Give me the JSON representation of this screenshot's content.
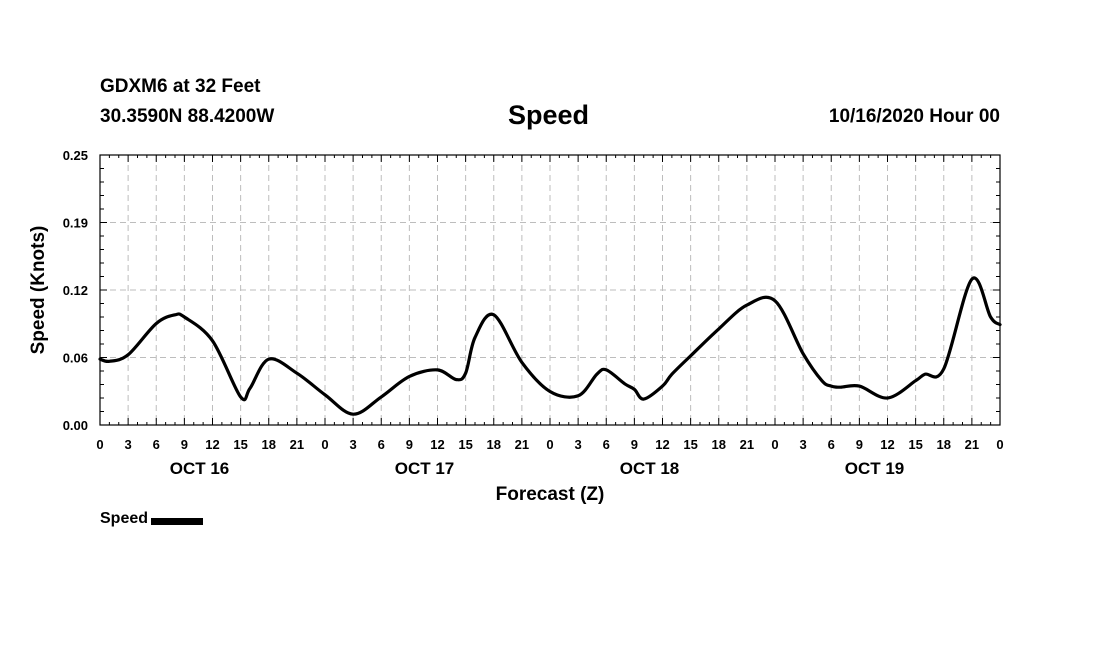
{
  "header": {
    "station": "GDXM6 at 32 Feet",
    "coords": "30.3590N 88.4200W",
    "title": "Speed",
    "datetime": "10/16/2020 Hour 00"
  },
  "chart_data": {
    "type": "line",
    "title": "Speed",
    "xlabel": "Forecast (Z)",
    "ylabel": "Speed (Knots)",
    "xlim": [
      0,
      96
    ],
    "ylim": [
      0,
      0.25
    ],
    "yticks": [
      "0.00",
      "0.06",
      "0.12",
      "0.19",
      "0.25"
    ],
    "ytick_values": [
      0,
      0.0625,
      0.125,
      0.1875,
      0.25
    ],
    "xtick_labels": [
      "0",
      "3",
      "6",
      "9",
      "12",
      "15",
      "18",
      "21",
      "0",
      "3",
      "6",
      "9",
      "12",
      "15",
      "18",
      "21",
      "0",
      "3",
      "6",
      "9",
      "12",
      "15",
      "18",
      "21",
      "0",
      "3",
      "6",
      "9",
      "12",
      "15",
      "18",
      "21",
      "0"
    ],
    "day_labels": [
      {
        "label": "OCT 16",
        "hour": 12
      },
      {
        "label": "OCT 17",
        "hour": 36
      },
      {
        "label": "OCT 18",
        "hour": 60
      },
      {
        "label": "OCT 19",
        "hour": 84
      }
    ],
    "grid": true,
    "legend": "bottom-left",
    "series": [
      {
        "name": "Speed",
        "color": "#000000",
        "x": [
          0,
          1,
          3,
          6,
          8,
          9,
          12,
          15,
          16,
          18,
          21,
          24,
          27,
          30,
          33,
          36,
          38,
          39,
          40,
          42,
          45,
          48,
          51,
          53,
          54,
          56,
          57,
          58,
          60,
          61,
          63,
          66,
          69,
          72,
          75,
          77,
          78,
          79,
          81,
          84,
          87,
          88,
          90,
          93,
          95,
          96
        ],
        "y": [
          0.061,
          0.059,
          0.065,
          0.094,
          0.102,
          0.1,
          0.078,
          0.026,
          0.034,
          0.061,
          0.048,
          0.028,
          0.01,
          0.026,
          0.045,
          0.051,
          0.042,
          0.048,
          0.081,
          0.102,
          0.058,
          0.031,
          0.027,
          0.047,
          0.051,
          0.038,
          0.033,
          0.024,
          0.036,
          0.047,
          0.064,
          0.089,
          0.111,
          0.115,
          0.066,
          0.041,
          0.036,
          0.035,
          0.036,
          0.025,
          0.041,
          0.047,
          0.052,
          0.135,
          0.1,
          0.093
        ]
      }
    ]
  },
  "legend": {
    "label": "Speed"
  }
}
